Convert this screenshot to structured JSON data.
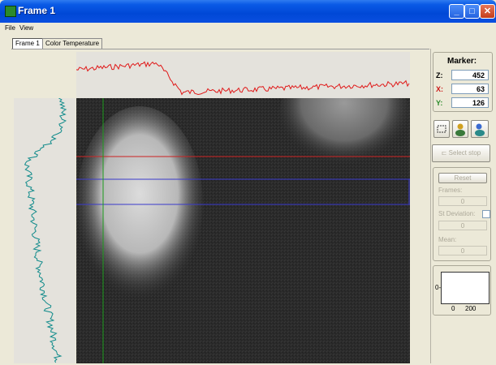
{
  "window": {
    "title": "Frame 1",
    "controls": {
      "minimize_icon": "minimize-icon",
      "maximize_icon": "maximize-icon",
      "close_icon": "close-icon"
    }
  },
  "menu": {
    "items": [
      {
        "label": "File"
      },
      {
        "label": "View"
      }
    ]
  },
  "tabs": [
    {
      "label": "Frame 1",
      "active": true
    },
    {
      "label": "Color Temperature",
      "active": false
    }
  ],
  "marker": {
    "title": "Marker:",
    "z": {
      "label": "Z:",
      "value": "452"
    },
    "x": {
      "label": "X:",
      "value": "63"
    },
    "y": {
      "label": "Y:",
      "value": "126"
    }
  },
  "tools": {
    "icons": [
      "crop-icon",
      "person-icon",
      "person-zoom-icon"
    ],
    "select_button": "Select stop"
  },
  "stats": {
    "reset_button": "Reset",
    "frames_label": "Frames:",
    "frames_value": "0",
    "std_label": "St Deviation:",
    "std_value": "0",
    "mean_label": "Mean:",
    "mean_value": "0"
  },
  "histogram": {
    "y_tick": "0-",
    "x_ticks": [
      "0",
      "200"
    ]
  },
  "colors": {
    "title_bar": "#0a5ae6",
    "horizontal_profile": "#e01818",
    "vertical_profile": "#0e8a8a",
    "horizontal_cursor": "#cc2222",
    "roi_lines": "#3a3acc",
    "vertical_cursor": "#1a9a1a"
  }
}
